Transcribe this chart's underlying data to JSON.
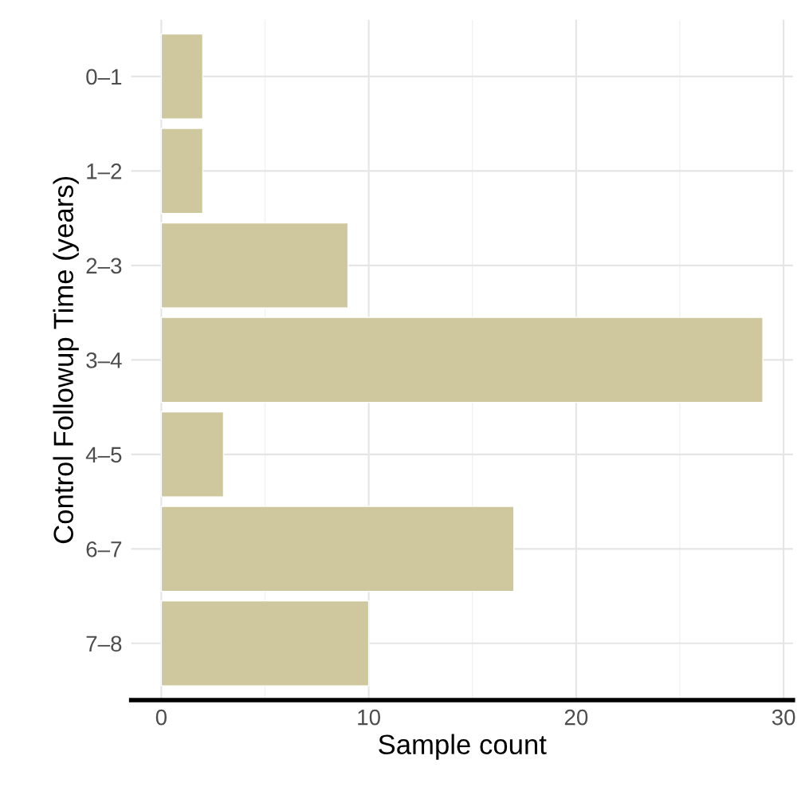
{
  "chart_data": {
    "type": "bar",
    "orientation": "horizontal",
    "xlabel": "Sample count",
    "ylabel": "Control Followup Time (years)",
    "categories": [
      "0–1",
      "1–2",
      "2–3",
      "3–4",
      "4–5",
      "6–7",
      "7–8"
    ],
    "values": [
      2,
      2,
      9,
      29,
      3,
      17,
      10
    ],
    "color": "#cfc89f",
    "xlim": [
      -1.45,
      30.45
    ],
    "xticks": [
      0,
      {
        "value": 5,
        "label": null
      },
      10,
      {
        "value": 15,
        "label": null
      },
      20,
      {
        "value": 25,
        "label": null
      },
      30
    ],
    "grid": true
  }
}
